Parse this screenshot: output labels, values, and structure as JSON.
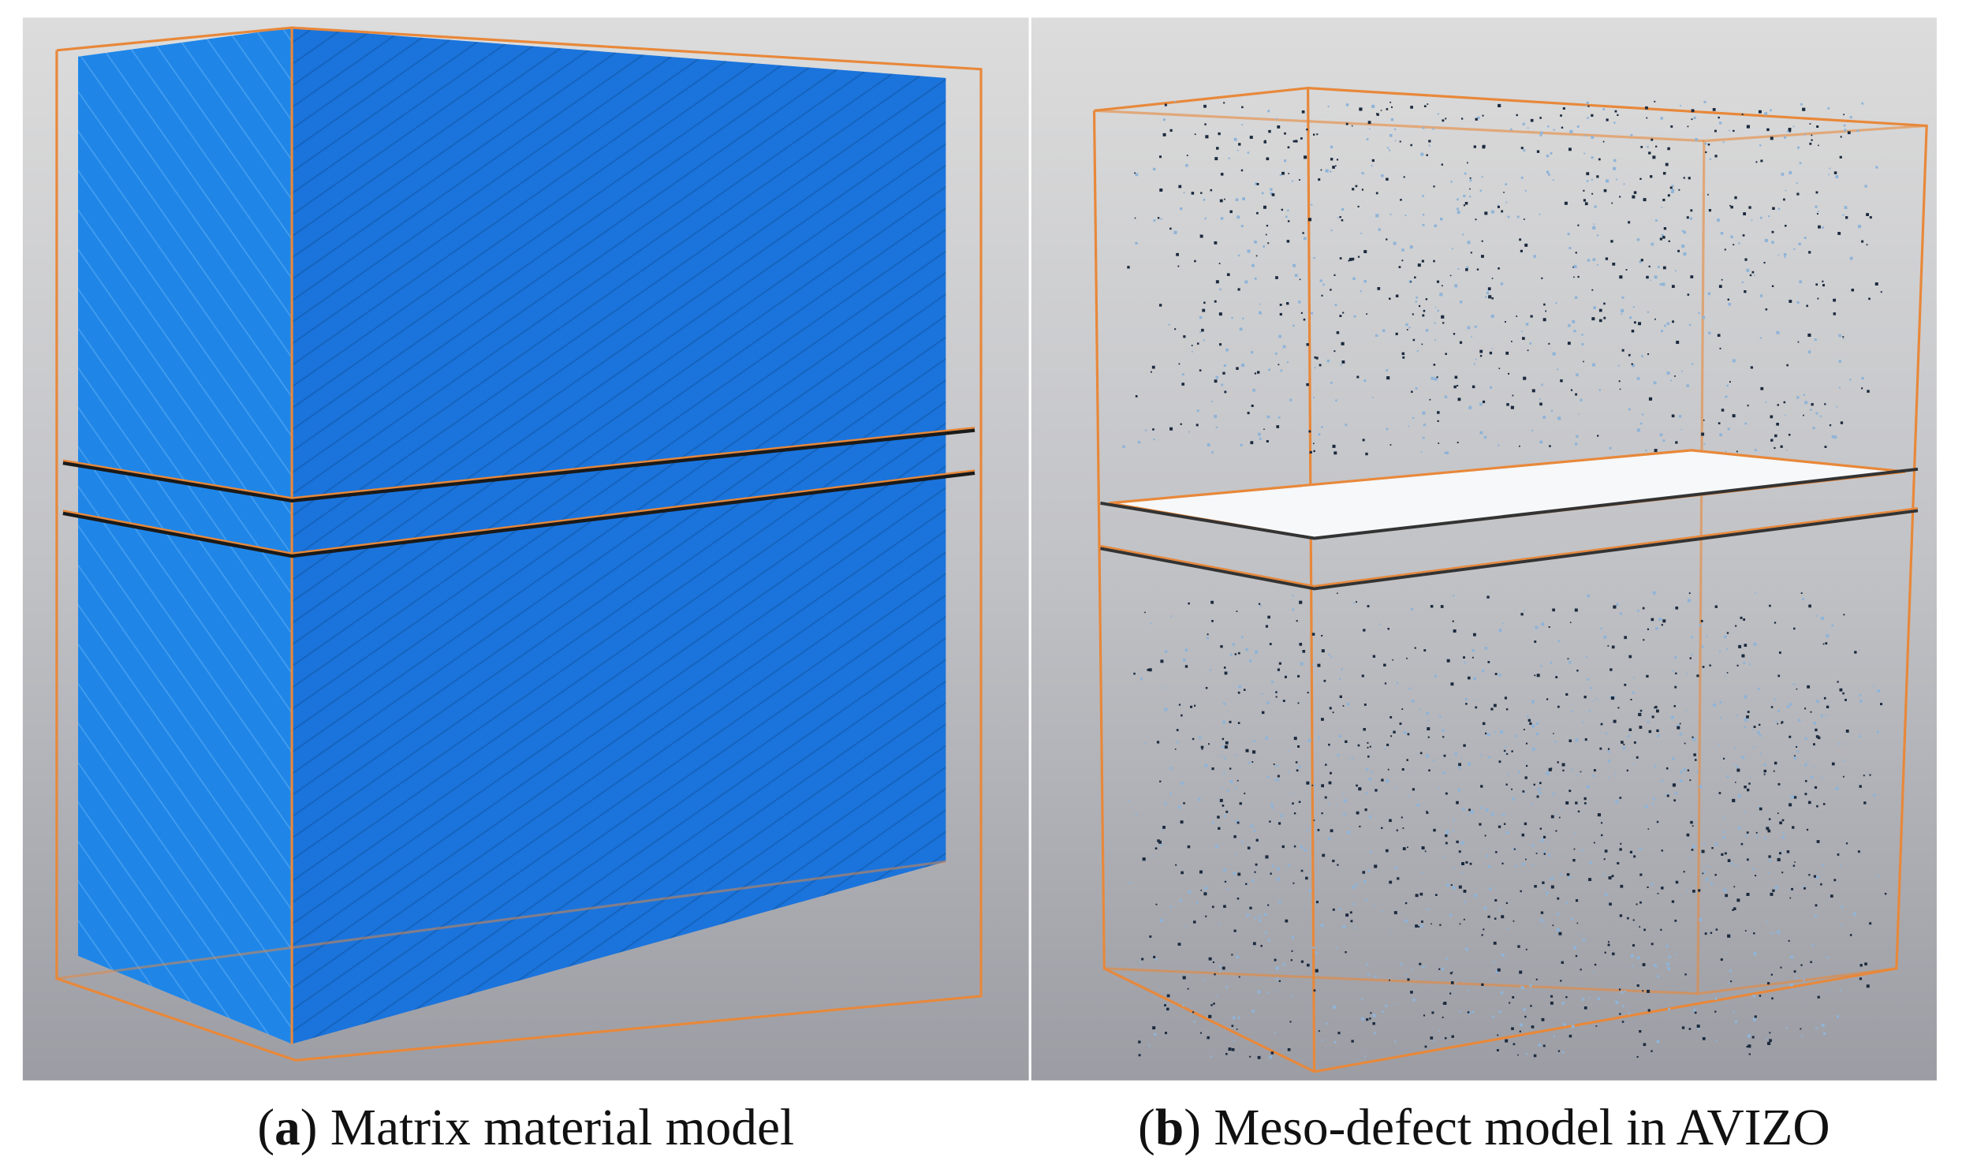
{
  "panels": [
    {
      "open": "(",
      "label": "a",
      "close": ")",
      "caption": "Matrix material model"
    },
    {
      "open": "(",
      "label": "b",
      "close": ")",
      "caption": "Meso-defect model in AVIZO"
    }
  ]
}
